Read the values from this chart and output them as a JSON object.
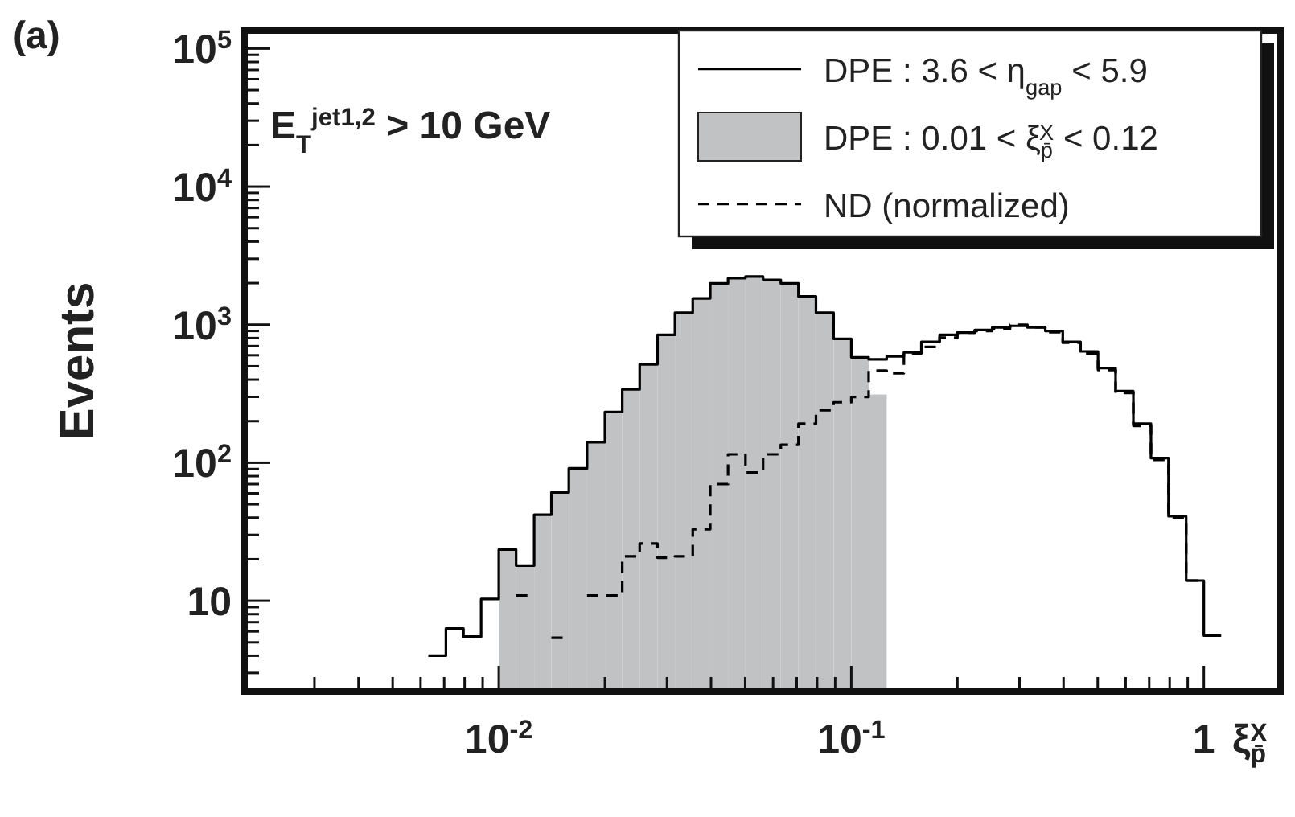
{
  "chart_data": {
    "type": "histogram",
    "xlabel": "ξ$_{p̄}$$^{X}$",
    "ylabel": "Events",
    "annotations": [
      "(a)",
      "E$_{T}$$^{jet1,2}$ > 10 GeV"
    ],
    "log": "xy",
    "legend": "top right",
    "grid": false,
    "xlim": [
      0.0019,
      1.65
    ],
    "ylim": [
      2.2,
      135000
    ],
    "xticks": [
      {
        "value": 0.003,
        "label": null
      },
      {
        "value": 0.004,
        "label": null
      },
      {
        "value": 0.005,
        "label": null
      },
      {
        "value": 0.006,
        "label": null
      },
      {
        "value": 0.007,
        "label": null
      },
      {
        "value": 0.008,
        "label": null
      },
      {
        "value": 0.009,
        "label": null
      },
      {
        "value": 0.01,
        "label": "10$^{-2}$"
      },
      {
        "value": 0.02,
        "label": null
      },
      {
        "value": 0.03,
        "label": null
      },
      {
        "value": 0.04,
        "label": null
      },
      {
        "value": 0.05,
        "label": null
      },
      {
        "value": 0.06,
        "label": null
      },
      {
        "value": 0.07,
        "label": null
      },
      {
        "value": 0.08,
        "label": null
      },
      {
        "value": 0.09,
        "label": null
      },
      {
        "value": 0.1,
        "label": "10$^{-1}$"
      },
      {
        "value": 0.2,
        "label": null
      },
      {
        "value": 0.3,
        "label": null
      },
      {
        "value": 0.4,
        "label": null
      },
      {
        "value": 0.5,
        "label": null
      },
      {
        "value": 0.6,
        "label": null
      },
      {
        "value": 0.7,
        "label": null
      },
      {
        "value": 0.8,
        "label": null
      },
      {
        "value": 0.9,
        "label": null
      },
      {
        "value": 1,
        "label": "1"
      }
    ],
    "yticks": [
      {
        "value": 3,
        "label": null
      },
      {
        "value": 4,
        "label": null
      },
      {
        "value": 5,
        "label": null
      },
      {
        "value": 6,
        "label": null
      },
      {
        "value": 7,
        "label": null
      },
      {
        "value": 8,
        "label": null
      },
      {
        "value": 9,
        "label": null
      },
      10,
      {
        "value": 20,
        "label": null
      },
      {
        "value": 30,
        "label": null
      },
      {
        "value": 40,
        "label": null
      },
      {
        "value": 50,
        "label": null
      },
      {
        "value": 60,
        "label": null
      },
      {
        "value": 70,
        "label": null
      },
      {
        "value": 80,
        "label": null
      },
      {
        "value": 90,
        "label": null
      },
      {
        "value": 100,
        "label": "10$^{2}$"
      },
      {
        "value": 200,
        "label": null
      },
      {
        "value": 300,
        "label": null
      },
      {
        "value": 400,
        "label": null
      },
      {
        "value": 500,
        "label": null
      },
      {
        "value": 600,
        "label": null
      },
      {
        "value": 700,
        "label": null
      },
      {
        "value": 800,
        "label": null
      },
      {
        "value": 900,
        "label": null
      },
      {
        "value": 1000,
        "label": "10$^{3}$"
      },
      {
        "value": 2000,
        "label": null
      },
      {
        "value": 3000,
        "label": null
      },
      {
        "value": 4000,
        "label": null
      },
      {
        "value": 5000,
        "label": null
      },
      {
        "value": 6000,
        "label": null
      },
      {
        "value": 7000,
        "label": null
      },
      {
        "value": 8000,
        "label": null
      },
      {
        "value": 9000,
        "label": null
      },
      {
        "value": 10000,
        "label": "10$^{4}$"
      },
      {
        "value": 20000,
        "label": null
      },
      {
        "value": 30000,
        "label": null
      },
      {
        "value": 40000,
        "label": null
      },
      {
        "value": 50000,
        "label": null
      },
      {
        "value": 60000,
        "label": null
      },
      {
        "value": 70000,
        "label": null
      },
      {
        "value": 80000,
        "label": null
      },
      {
        "value": 90000,
        "label": null
      },
      {
        "value": 100000,
        "label": "10$^{5}$"
      }
    ],
    "bins": [
      0.01,
      0.0112,
      0.0126,
      0.0141,
      0.0158,
      0.0178,
      0.02,
      0.0224,
      0.0251,
      0.0282,
      0.0316,
      0.0355,
      0.0398,
      0.0447,
      0.0501,
      0.0562,
      0.0631,
      0.0708,
      0.0794,
      0.0891,
      0.1,
      0.112,
      0.126
    ],
    "series": [
      {
        "name": "DPE : 3.6 < η$_{gap}$ < 5.9",
        "type": "step",
        "color": "#000000",
        "line_style": "solid",
        "x": [
          0.00631,
          0.00708,
          0.00794,
          0.00891,
          0.01,
          0.0112,
          0.0126,
          0.0141,
          0.0158,
          0.0178,
          0.02,
          0.0224,
          0.0251,
          0.0282,
          0.0316,
          0.0355,
          0.0398,
          0.0447,
          0.0501,
          0.0562,
          0.0631,
          0.0708,
          0.0794,
          0.0891,
          0.1,
          0.112,
          0.126,
          0.141,
          0.158,
          0.178,
          0.2,
          0.224,
          0.251,
          0.282,
          0.316,
          0.355,
          0.398,
          0.447,
          0.501,
          0.562,
          0.631,
          0.708,
          0.794,
          0.891,
          1.0,
          1.12
        ],
        "values": [
          4.0,
          6.3,
          5.5,
          10.3,
          23.5,
          18,
          42,
          61,
          91,
          141,
          233,
          340,
          516,
          845,
          1220,
          1550,
          1990,
          2170,
          2230,
          2110,
          1990,
          1600,
          1220,
          790,
          580,
          560,
          590,
          630,
          750,
          845,
          875,
          915,
          955,
          980,
          955,
          900,
          750,
          640,
          485,
          330,
          192,
          108,
          41,
          14,
          5.6,
          5.6
        ]
      },
      {
        "name": "DPE : 0.01 < ξ$_{p̄}$$^{X}$ < 0.12",
        "color": "#c0c2c4",
        "values": [
          23.5,
          18,
          42,
          61,
          91,
          141,
          233,
          340,
          516,
          845,
          1220,
          1550,
          1990,
          2170,
          2230,
          2110,
          1990,
          1600,
          1220,
          790,
          580,
          312
        ]
      },
      {
        "name": "ND (normalized)",
        "type": "step",
        "color": "#000000",
        "line_style": "dashed",
        "x": [
          0.00794,
          0.00891,
          0.0112,
          0.0126,
          0.0141,
          0.0158,
          0.0178,
          0.02,
          0.0224,
          0.0251,
          0.0282,
          0.0316,
          0.0355,
          0.0398,
          0.0447,
          0.0501,
          0.0562,
          0.0631,
          0.0708,
          0.0794,
          0.0891,
          0.1,
          0.112,
          0.126,
          0.141,
          0.158,
          0.178,
          0.2,
          0.224,
          0.251,
          0.282,
          0.316,
          0.355,
          0.398,
          0.447,
          0.501,
          0.562,
          0.631,
          0.708,
          0.794,
          0.891,
          1.0
        ],
        "values": [
          5.5,
          null,
          10.9,
          null,
          5.4,
          null,
          10.9,
          10.9,
          21,
          26,
          20.5,
          21,
          33,
          70,
          115,
          85,
          115,
          135,
          192,
          240,
          274,
          299,
          465,
          445,
          618,
          690,
          805,
          875,
          900,
          930,
          1000,
          960,
          880,
          740,
          620,
          470,
          320,
          185,
          105,
          40,
          14,
          14
        ]
      }
    ]
  }
}
